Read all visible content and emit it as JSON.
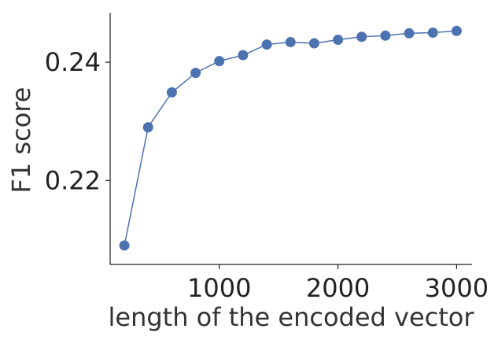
{
  "chart_data": {
    "type": "line",
    "title": "",
    "xlabel": "length of the encoded vector",
    "ylabel": "F1 score",
    "x_ticks": [
      1000,
      2000,
      3000
    ],
    "x_tick_labels": [
      "1000",
      "2000",
      "3000"
    ],
    "y_ticks": [
      0.22,
      0.24
    ],
    "y_tick_labels": [
      "0.22",
      "0.24"
    ],
    "xlim": [
      80,
      3130
    ],
    "ylim": [
      0.2058,
      0.2484
    ],
    "grid": false,
    "marker": "circle",
    "series": [
      {
        "color": "#4c72b0",
        "x": [
          200,
          400,
          600,
          800,
          1000,
          1200,
          1400,
          1600,
          1800,
          2000,
          2200,
          2400,
          2600,
          2800,
          3000
        ],
        "y": [
          0.209,
          0.229,
          0.2349,
          0.2382,
          0.2402,
          0.2412,
          0.243,
          0.2434,
          0.2432,
          0.2438,
          0.2443,
          0.2445,
          0.2449,
          0.245,
          0.2453
        ],
        "err": [
          0.0008,
          0.0005,
          0.0006,
          0.0006,
          0.0007,
          0.0008,
          0.0007,
          0.0008,
          0.0008,
          0.0008,
          0.0008,
          0.0008,
          0.0007,
          0.0007,
          0.0007
        ]
      }
    ]
  }
}
